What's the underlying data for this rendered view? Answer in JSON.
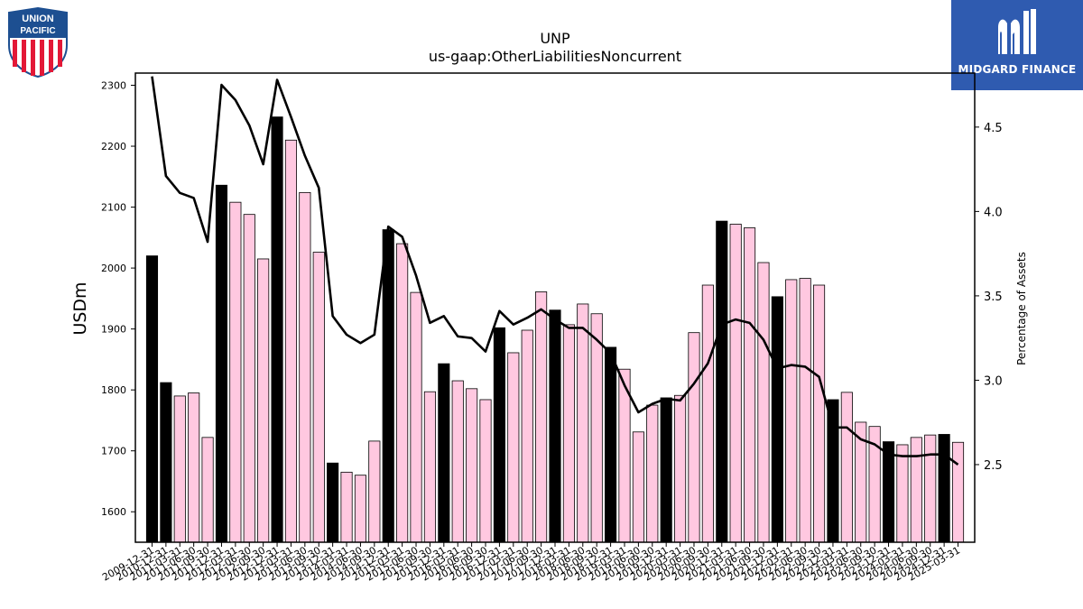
{
  "logos": {
    "left": {
      "line1": "UNION",
      "line2": "PACIFIC"
    },
    "right": {
      "brand": "MIDGARD FINANCE"
    }
  },
  "colors": {
    "bar_annual": "#000000",
    "bar_quarterly": "#ffc8e0",
    "line": "#000000",
    "midgard_blue": "#2f5bb0",
    "up_blue": "#1d4f91",
    "up_red": "#e31837"
  },
  "chart_data": {
    "type": "bar",
    "title": "UNP",
    "subtitle": "us-gaap:OtherLiabilitiesNoncurrent",
    "ylabel": "USDm",
    "y2label": "Percentage of Assets",
    "ylim": [
      1550,
      2320
    ],
    "y2lim": [
      2.04,
      4.82
    ],
    "yticks": [
      1600,
      1700,
      1800,
      1900,
      2000,
      2100,
      2200,
      2300
    ],
    "y2ticks": [
      2.5,
      3.0,
      3.5,
      4.0,
      4.5
    ],
    "categories": [
      "2009-12-31",
      "2010-12-31",
      "2011-03-31",
      "2011-06-30",
      "2011-09-30",
      "2011-12-31",
      "2012-03-31",
      "2012-06-30",
      "2012-09-30",
      "2012-12-31",
      "2013-03-31",
      "2013-06-30",
      "2013-09-30",
      "2013-12-31",
      "2014-03-31",
      "2014-06-30",
      "2014-09-30",
      "2014-12-31",
      "2015-03-31",
      "2015-06-30",
      "2015-09-30",
      "2015-12-31",
      "2016-03-31",
      "2016-06-30",
      "2016-09-30",
      "2016-12-31",
      "2017-03-31",
      "2017-06-30",
      "2017-09-30",
      "2017-12-31",
      "2018-03-31",
      "2018-06-30",
      "2018-09-30",
      "2018-12-31",
      "2019-03-31",
      "2019-06-30",
      "2019-09-30",
      "2019-12-31",
      "2020-03-31",
      "2020-06-30",
      "2020-09-30",
      "2020-12-31",
      "2021-03-31",
      "2021-06-30",
      "2021-09-30",
      "2021-12-31",
      "2022-03-31",
      "2022-06-30",
      "2022-09-30",
      "2022-12-31",
      "2023-03-31",
      "2023-06-30",
      "2023-09-30",
      "2023-12-31",
      "2024-03-31",
      "2024-06-30",
      "2024-09-30",
      "2024-12-31",
      "2025-03-31"
    ],
    "series": [
      {
        "values": [
          2020,
          1812,
          1790,
          1795,
          1722,
          2136,
          2108,
          2088,
          2015,
          2248,
          2210,
          2124,
          2026,
          1680,
          1665,
          1660,
          1716,
          2063,
          2040,
          1960,
          1797,
          1843,
          1815,
          1802,
          1784,
          1902,
          1861,
          1898,
          1961,
          1931,
          1907,
          1941,
          1925,
          1870,
          1834,
          1731,
          1775,
          1787,
          1791,
          1894,
          1972,
          2077,
          2072,
          2066,
          2009,
          1953,
          1981,
          1983,
          1972,
          1784,
          1796,
          1747,
          1740,
          1715,
          1710,
          1722,
          1726,
          1727,
          1714
        ],
        "annual": [
          true,
          true,
          false,
          false,
          false,
          true,
          false,
          false,
          false,
          true,
          false,
          false,
          false,
          true,
          false,
          false,
          false,
          true,
          false,
          false,
          false,
          true,
          false,
          false,
          false,
          true,
          false,
          false,
          false,
          true,
          false,
          false,
          false,
          true,
          false,
          false,
          false,
          true,
          false,
          false,
          false,
          true,
          false,
          false,
          false,
          true,
          false,
          false,
          false,
          true,
          false,
          false,
          false,
          true,
          false,
          false,
          false,
          true,
          false
        ]
      },
      {
        "axis": "right",
        "values": [
          4.8,
          4.21,
          4.11,
          4.08,
          3.82,
          4.75,
          4.66,
          4.51,
          4.28,
          4.78,
          4.56,
          4.33,
          4.14,
          3.38,
          3.27,
          3.22,
          3.27,
          3.91,
          3.85,
          3.62,
          3.34,
          3.38,
          3.26,
          3.25,
          3.17,
          3.41,
          3.33,
          3.37,
          3.42,
          3.36,
          3.31,
          3.31,
          3.24,
          3.16,
          2.97,
          2.81,
          2.86,
          2.89,
          2.88,
          2.98,
          3.1,
          3.33,
          3.36,
          3.34,
          3.24,
          3.07,
          3.09,
          3.08,
          3.02,
          2.72,
          2.72,
          2.65,
          2.62,
          2.56,
          2.55,
          2.55,
          2.56,
          2.56,
          2.5
        ]
      }
    ],
    "grid": false,
    "legend": "none"
  }
}
